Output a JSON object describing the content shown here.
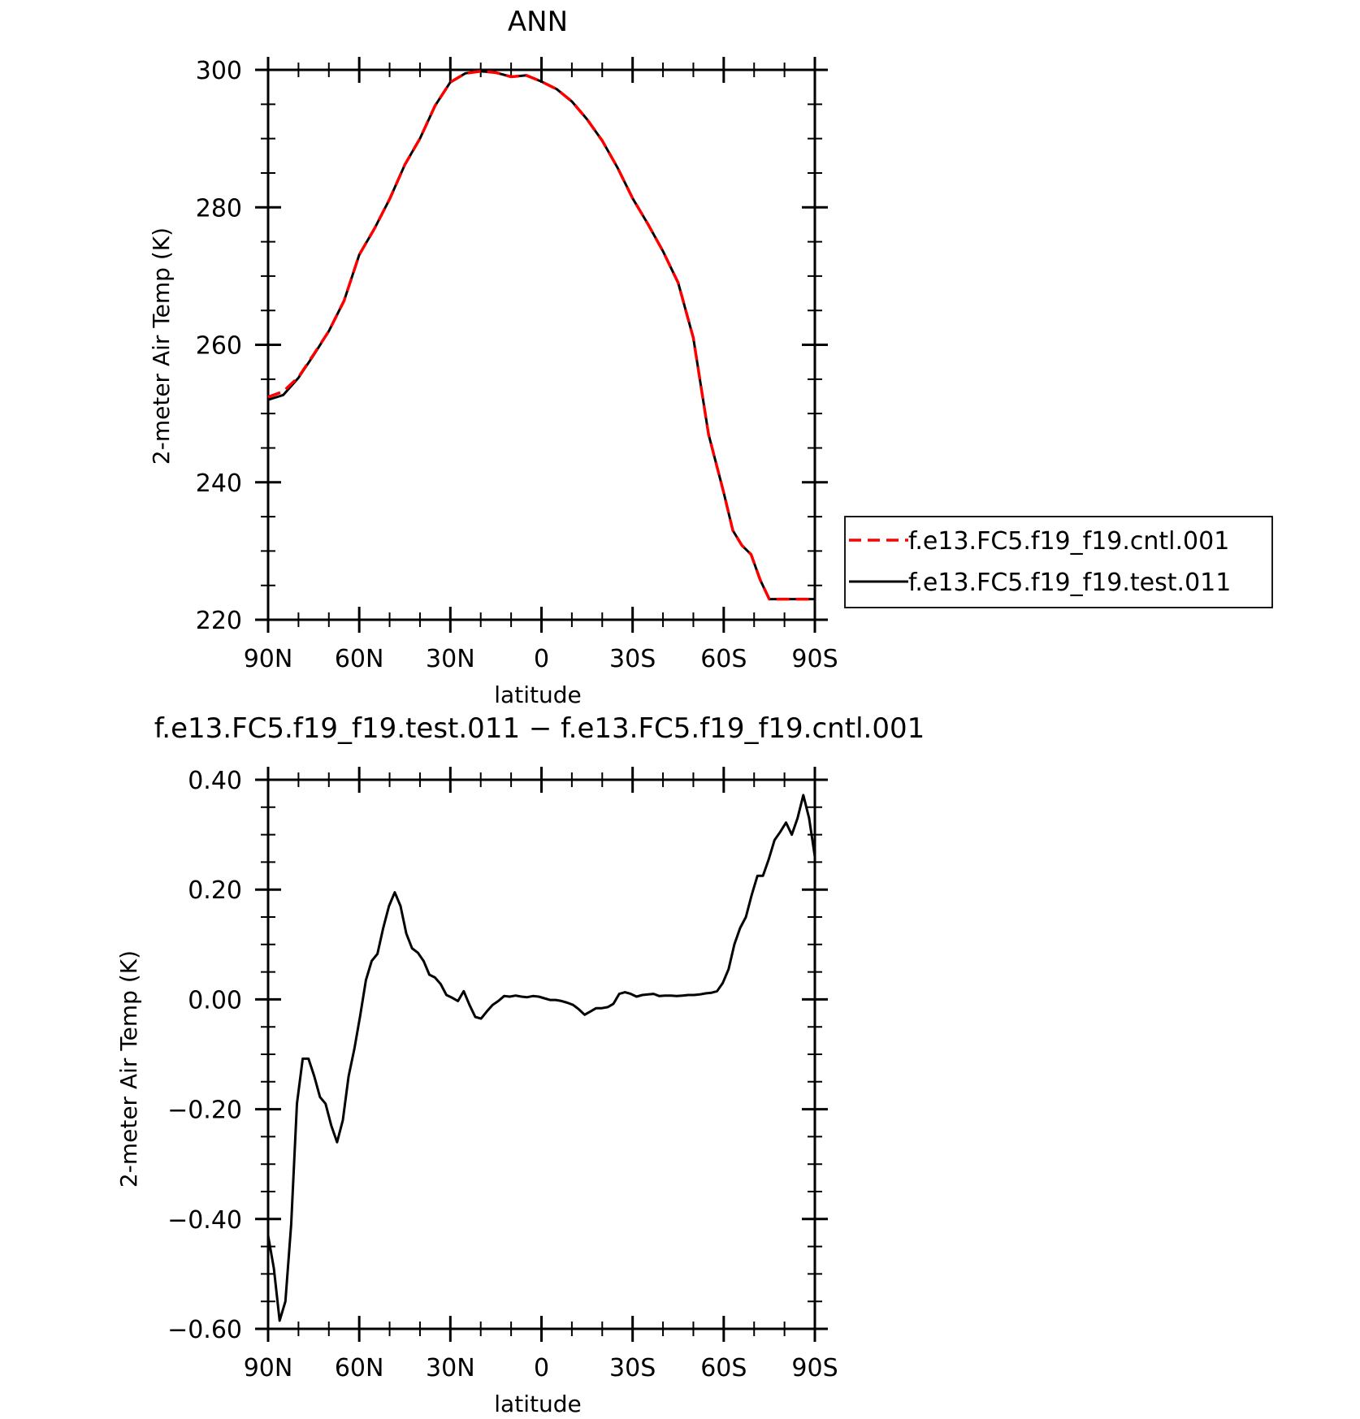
{
  "chart_data": [
    {
      "type": "line",
      "title": "ANN",
      "xlabel": "latitude",
      "ylabel": "2-meter Air Temp (K)",
      "xlim": [
        90,
        -90
      ],
      "ylim": [
        220,
        300
      ],
      "xticks": [
        90,
        60,
        30,
        0,
        -30,
        -60,
        -90
      ],
      "xtick_labels": [
        "90N",
        "60N",
        "30N",
        "0",
        "30S",
        "60S",
        "90S"
      ],
      "yticks": [
        220,
        240,
        260,
        280,
        300
      ],
      "ytick_labels": [
        "220",
        "240",
        "260",
        "280",
        "300"
      ],
      "legend_position": "right",
      "grid": false,
      "series": [
        {
          "name": "f.e13.FC5.f19_f19.cntl.001",
          "color": "#ff0000",
          "dash": "dashed",
          "x": [
            90,
            85,
            80,
            75,
            70,
            65,
            60,
            55,
            50,
            45,
            40,
            35,
            30,
            25,
            20,
            15,
            10,
            5,
            0,
            -5,
            -10,
            -15,
            -20,
            -25,
            -30,
            -35,
            -40,
            -45,
            -50,
            -55,
            -60,
            -63,
            -66,
            -69,
            -72,
            -75,
            -78,
            -81,
            -84,
            -87,
            -90
          ],
          "y": [
            252.4,
            253.2,
            255.3,
            258.6,
            262.0,
            266.4,
            273.1,
            276.9,
            281.2,
            286.2,
            290.0,
            294.8,
            298.2,
            299.5,
            299.8,
            299.6,
            299.0,
            299.2,
            298.3,
            297.2,
            295.4,
            292.8,
            289.7,
            285.8,
            281.3,
            277.6,
            273.6,
            269.0,
            261.0,
            247.0,
            238.5,
            233.0,
            230.8,
            229.5,
            225.8,
            223.0,
            223.0,
            223.0,
            223.0,
            223.0,
            223.0
          ]
        },
        {
          "name": "f.e13.FC5.f19_f19.test.011",
          "color": "#000000",
          "dash": "solid",
          "x": [
            90,
            85,
            80,
            75,
            70,
            65,
            60,
            55,
            50,
            45,
            40,
            35,
            30,
            25,
            20,
            15,
            10,
            5,
            0,
            -5,
            -10,
            -15,
            -20,
            -25,
            -30,
            -35,
            -40,
            -45,
            -50,
            -55,
            -60,
            -63,
            -66,
            -69,
            -72,
            -75,
            -78,
            -81,
            -84,
            -87,
            -90
          ],
          "y": [
            252.0,
            252.7,
            255.2,
            258.5,
            262.0,
            266.4,
            273.1,
            276.9,
            281.2,
            286.2,
            290.0,
            294.8,
            298.2,
            299.5,
            299.8,
            299.6,
            299.0,
            299.2,
            298.3,
            297.2,
            295.4,
            292.8,
            289.7,
            285.8,
            281.3,
            277.6,
            273.6,
            269.0,
            261.0,
            247.0,
            238.5,
            233.0,
            230.8,
            229.5,
            225.8,
            223.0,
            223.0,
            223.0,
            223.0,
            223.0,
            223.0
          ]
        }
      ]
    },
    {
      "type": "line",
      "title": "f.e13.FC5.f19_f19.test.011 − f.e13.FC5.f19_f19.cntl.001",
      "xlabel": "latitude",
      "ylabel": "2-meter Air Temp (K)",
      "xlim": [
        90,
        -90
      ],
      "ylim": [
        -0.6,
        0.4
      ],
      "xticks": [
        90,
        60,
        30,
        0,
        -30,
        -60,
        -90
      ],
      "xtick_labels": [
        "90N",
        "60N",
        "30N",
        "0",
        "30S",
        "60S",
        "90S"
      ],
      "yticks": [
        -0.6,
        -0.4,
        -0.2,
        0.0,
        0.2,
        0.4
      ],
      "ytick_labels": [
        "−0.60",
        "−0.40",
        "−0.20",
        "0.00",
        "0.20",
        "0.40"
      ],
      "grid": false,
      "series": [
        {
          "color": "#000000",
          "dash": "solid",
          "x": [
            90,
            88.1,
            86.2,
            84.3,
            82.4,
            80.5,
            78.6,
            76.7,
            74.8,
            72.9,
            71.1,
            69.2,
            67.3,
            65.4,
            63.5,
            61.6,
            59.7,
            57.8,
            55.9,
            54.0,
            52.1,
            50.2,
            48.3,
            46.4,
            44.5,
            42.6,
            40.7,
            38.8,
            36.9,
            35.1,
            33.2,
            31.3,
            29.4,
            27.5,
            25.6,
            23.7,
            21.8,
            19.9,
            18.0,
            16.1,
            14.2,
            12.3,
            10.4,
            8.5,
            6.6,
            4.7,
            2.8,
            0.9,
            -0.9,
            -2.8,
            -4.7,
            -6.6,
            -8.5,
            -10.4,
            -12.3,
            -14.2,
            -16.1,
            -18.0,
            -19.9,
            -21.8,
            -23.7,
            -25.6,
            -27.5,
            -29.4,
            -31.3,
            -33.2,
            -35.1,
            -36.9,
            -38.8,
            -40.7,
            -42.6,
            -44.5,
            -46.4,
            -48.3,
            -50.2,
            -52.1,
            -54.0,
            -55.9,
            -57.8,
            -59.7,
            -61.6,
            -63.5,
            -65.4,
            -67.3,
            -69.2,
            -71.1,
            -72.9,
            -74.8,
            -76.7,
            -78.6,
            -80.5,
            -82.4,
            -84.3,
            -86.2,
            -88.1,
            -90
          ],
          "y": [
            -0.43,
            -0.49,
            -0.585,
            -0.55,
            -0.41,
            -0.19,
            -0.108,
            -0.108,
            -0.14,
            -0.178,
            -0.19,
            -0.23,
            -0.26,
            -0.22,
            -0.14,
            -0.09,
            -0.03,
            0.035,
            0.07,
            0.083,
            0.13,
            0.17,
            0.195,
            0.17,
            0.12,
            0.093,
            0.085,
            0.07,
            0.045,
            0.04,
            0.028,
            0.008,
            0.003,
            -0.003,
            0.015,
            -0.01,
            -0.032,
            -0.035,
            -0.022,
            -0.01,
            -0.003,
            0.006,
            0.005,
            0.007,
            0.005,
            0.004,
            0.006,
            0.005,
            0.002,
            -0.001,
            -0.001,
            -0.003,
            -0.006,
            -0.01,
            -0.018,
            -0.028,
            -0.022,
            -0.016,
            -0.016,
            -0.014,
            -0.008,
            0.01,
            0.013,
            0.01,
            0.005,
            0.008,
            0.009,
            0.01,
            0.006,
            0.007,
            0.007,
            0.006,
            0.007,
            0.008,
            0.008,
            0.009,
            0.011,
            0.012,
            0.015,
            0.03,
            0.055,
            0.1,
            0.13,
            0.15,
            0.19,
            0.225,
            0.225,
            0.255,
            0.29,
            0.305,
            0.322,
            0.3,
            0.33,
            0.372,
            0.33,
            0.26
          ]
        }
      ]
    }
  ]
}
